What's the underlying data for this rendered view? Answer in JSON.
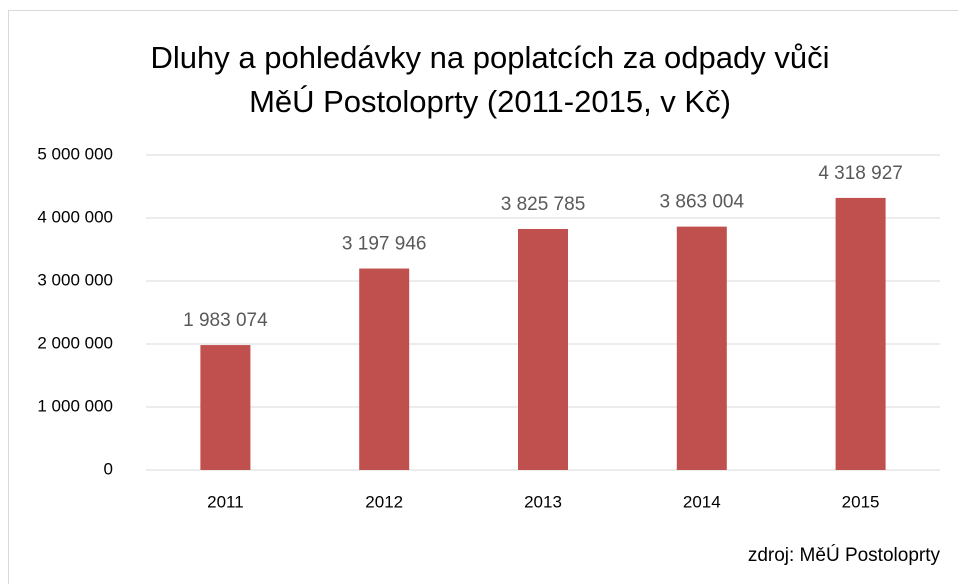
{
  "chart_data": {
    "type": "bar",
    "title": [
      "Dluhy a pohledávky na poplatcích za odpady vůči",
      "MěÚ Postoloprty (2011-2015, v Kč)"
    ],
    "categories": [
      "2011",
      "2012",
      "2013",
      "2014",
      "2015"
    ],
    "values": [
      1983074,
      3197946,
      3825785,
      3863004,
      4318927
    ],
    "value_labels": [
      "1 983 074",
      "3 197 946",
      "3 825 785",
      "3 863 004",
      "4 318 927"
    ],
    "color": "#c0504d",
    "ylim": [
      0,
      5000000
    ],
    "yticks": [
      0,
      {
        "value": 1000000,
        "label": "1 000 000"
      },
      {
        "value": 2000000,
        "label": "2 000 000"
      },
      {
        "value": 3000000,
        "label": "3 000 000"
      },
      {
        "value": 4000000,
        "label": "4 000 000"
      },
      {
        "value": 5000000,
        "label": "5 000 000"
      }
    ],
    "grid": true,
    "source": "zdroj: MěÚ Postoloprty"
  }
}
